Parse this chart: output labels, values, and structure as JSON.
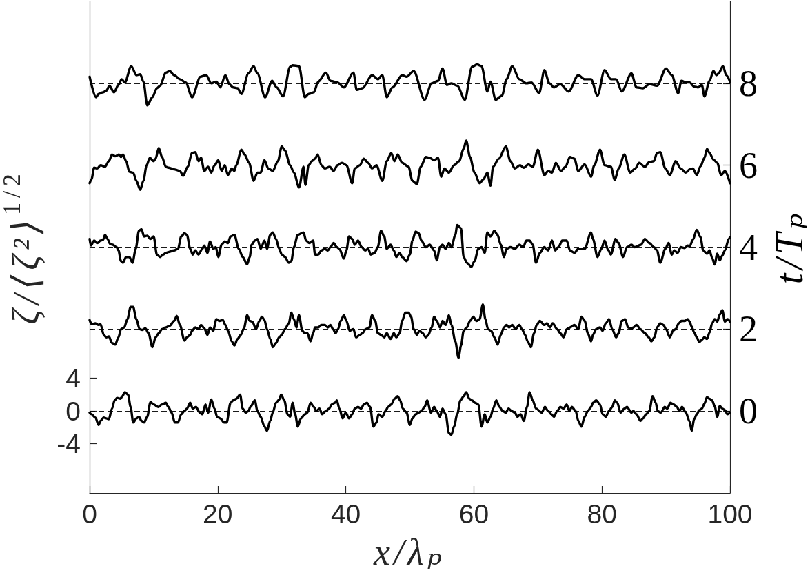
{
  "chart_data": {
    "type": "line",
    "xlabel": "x/λₚ",
    "ylabel": "ζ/⟨ζ²⟩$^{1/2}$",
    "y2label": "t/Tₚ",
    "xlim": [
      0,
      100
    ],
    "xticks": [
      0,
      20,
      40,
      60,
      80,
      100
    ],
    "ylim": [
      -10,
      50
    ],
    "yticks": [
      -4,
      0,
      4
    ],
    "y2lim": [
      -2,
      10
    ],
    "y2ticks": [
      0,
      2,
      4,
      6,
      8
    ],
    "ref_lines": [
      {
        "axis": "y2",
        "value": 0,
        "color": "#000000",
        "line_style": "dashed"
      },
      {
        "axis": "y2",
        "value": 2,
        "color": "#000000",
        "line_style": "dashed"
      },
      {
        "axis": "y2",
        "value": 4,
        "color": "#000000",
        "line_style": "dashed"
      },
      {
        "axis": "y2",
        "value": 6,
        "color": "#000000",
        "line_style": "dashed"
      },
      {
        "axis": "y2",
        "value": 8,
        "color": "#000000",
        "line_style": "dashed"
      }
    ],
    "series": [
      {
        "color": "#000000",
        "x": [
          0,
          0.3,
          0.9,
          1.4,
          1.7,
          2.2,
          2.6,
          3.0,
          3.5,
          3.9,
          4.3,
          4.8,
          5.1,
          5.5,
          6.0,
          6.4,
          6.8,
          7.3,
          7.7,
          8.1,
          8.5,
          9.0,
          9.5,
          10.0,
          10.7,
          11.3,
          11.9,
          12.3,
          12.8,
          13.3,
          13.8,
          14.3,
          14.8,
          15.2,
          15.7,
          16.1,
          16.6,
          17.2,
          17.6,
          18.1,
          18.5,
          19.0,
          19.5,
          19.9,
          20.4,
          21.0,
          21.4,
          22.0,
          22.4,
          22.9,
          23.5,
          23.9,
          24.4,
          24.8,
          25.1,
          25.8,
          26.2,
          26.7,
          27.3,
          27.7,
          28.2,
          28.6,
          29.1,
          29.6,
          29.9,
          30.4,
          30.9,
          31.3,
          31.7,
          32.1,
          32.5,
          33.0,
          33.6,
          34.0,
          34.5,
          35.0,
          35.4,
          35.9,
          36.3,
          36.9,
          37.4,
          37.8,
          38.3,
          38.6,
          39.0,
          39.5,
          40.0,
          40.5,
          41.0,
          41.4,
          41.9,
          42.4,
          42.8,
          43.3,
          43.8,
          44.3,
          44.8,
          45.1,
          45.7,
          46.2,
          46.6,
          47.1,
          47.6,
          48.1,
          48.5,
          48.9,
          49.5,
          50.0,
          50.4,
          50.9,
          51.4,
          51.8,
          52.3,
          52.7,
          53.3,
          53.8,
          54.2,
          54.7,
          55.1,
          55.6,
          56.1,
          56.5,
          56.9,
          57.4,
          57.9,
          58.4,
          58.8,
          59.3,
          59.7,
          60.2,
          60.7,
          61.2,
          61.7,
          62.1,
          62.6,
          63.0,
          63.5,
          64.0,
          64.5,
          65.0,
          65.4,
          65.9,
          66.4,
          66.8,
          67.3,
          67.8,
          68.3,
          68.7,
          69.2,
          69.7,
          70.6,
          71.1,
          71.6,
          72.1,
          72.5,
          73.0,
          73.5,
          74.0,
          74.5,
          74.9,
          75.3,
          75.9,
          76.3,
          76.8,
          77.3,
          77.8,
          78.3,
          78.6,
          79.1,
          79.7,
          80.1,
          80.6,
          81.1,
          81.6,
          82.0,
          82.4,
          82.9,
          83.5,
          83.9,
          84.6,
          84.9,
          85.4,
          86.0,
          86.4,
          86.9,
          87.4,
          87.9,
          88.4,
          88.7,
          89.2,
          89.8,
          90.2,
          90.7,
          91.2,
          91.7,
          92.1,
          92.5,
          93.1,
          93.7,
          94.0,
          94.4,
          94.8,
          95.2,
          95.6,
          96.0,
          96.4,
          96.8,
          97.2,
          97.6,
          98.0,
          98.4,
          98.8,
          99.2,
          99.6,
          100
        ],
        "values": [
          -0.2,
          -0.4,
          -0.8,
          -1.7,
          -1.2,
          -0.8,
          -0.9,
          -1.0,
          0.3,
          1.3,
          1.6,
          1.5,
          1.8,
          2.3,
          2.0,
          0.5,
          -1.4,
          -0.9,
          -0.7,
          -1.2,
          -1.4,
          -0.7,
          1.1,
          0.8,
          0.5,
          0.8,
          1.0,
          0.5,
          -0.2,
          -1.4,
          -1.4,
          -0.4,
          0.0,
          0.3,
          1.0,
          0.3,
          0.5,
          -0.2,
          -0.4,
          0.8,
          -0.2,
          1.4,
          0.3,
          -0.7,
          -0.9,
          -1.4,
          -1.4,
          1.0,
          1.3,
          1.5,
          2.0,
          0.3,
          -0.2,
          0.0,
          0.5,
          1.3,
          0.0,
          -0.7,
          -1.9,
          -2.4,
          -1.2,
          -0.2,
          1.0,
          1.4,
          2.0,
          1.3,
          -0.4,
          -0.7,
          1.0,
          -0.4,
          -1.9,
          -0.9,
          -0.4,
          -0.2,
          1.0,
          0.5,
          0.0,
          0.3,
          -0.4,
          0.0,
          0.3,
          0.8,
          1.0,
          1.3,
          0.3,
          -0.9,
          -0.2,
          -0.9,
          -0.4,
          0.3,
          0.5,
          0.3,
          0.8,
          1.0,
          0.5,
          -1.9,
          -1.4,
          -0.4,
          -0.7,
          0.0,
          0.5,
          0.8,
          1.5,
          1.8,
          1.3,
          0.3,
          -0.2,
          -1.7,
          -0.9,
          -0.4,
          -0.2,
          0.0,
          0.5,
          1.3,
          -0.2,
          0.5,
          0.0,
          -0.7,
          0.3,
          -0.4,
          -2.7,
          -2.9,
          -1.9,
          -0.4,
          1.3,
          1.8,
          2.3,
          1.5,
          1.3,
          1.0,
          0.8,
          -1.9,
          -0.4,
          -1.4,
          -0.7,
          0.3,
          1.3,
          0.5,
          0.0,
          -0.2,
          0.3,
          0.0,
          -0.2,
          -0.7,
          -0.4,
          -1.2,
          0.5,
          2.3,
          1.3,
          0.3,
          -0.2,
          0.5,
          0.0,
          -0.4,
          -0.7,
          0.0,
          0.5,
          0.3,
          0.8,
          0.0,
          0.5,
          0.0,
          -1.2,
          -1.9,
          -0.7,
          0.0,
          0.5,
          1.0,
          1.3,
          0.8,
          -0.4,
          -0.7,
          0.0,
          0.5,
          1.3,
          1.0,
          -0.2,
          0.3,
          0.5,
          -0.2,
          0.0,
          -0.4,
          -1.2,
          -0.9,
          -0.4,
          0.0,
          1.8,
          1.0,
          0.0,
          -0.2,
          0.5,
          0.3,
          1.0,
          0.8,
          0.5,
          0.0,
          0.5,
          -0.2,
          -1.3,
          -2.4,
          -1.0,
          -0.4,
          0.1,
          0.3,
          0.9,
          1.7,
          1.5,
          1.3,
          0.6,
          -0.7,
          0.6,
          0.3,
          0.1,
          -0.4,
          -0.2
        ]
      },
      {
        "color": "#000000",
        "x": [
          0,
          0.3,
          0.9,
          1.4,
          1.7,
          2.2,
          2.6,
          3.0,
          3.5,
          4.0,
          4.5,
          4.9,
          5.4,
          5.9,
          6.4,
          6.8,
          7.3,
          7.8,
          8.2,
          8.7,
          9.2,
          9.8,
          10.3,
          10.8,
          11.3,
          11.9,
          12.5,
          13.2,
          13.6,
          14.1,
          14.8,
          15.2,
          15.7,
          16.0,
          16.5,
          17.0,
          17.4,
          17.9,
          18.4,
          18.8,
          19.3,
          19.8,
          20.3,
          20.8,
          21.2,
          21.6,
          22.2,
          22.6,
          23.1,
          23.6,
          24.1,
          24.6,
          25.0,
          25.4,
          26.0,
          26.5,
          26.9,
          27.3,
          27.7,
          28.2,
          28.6,
          29.1,
          29.6,
          30.0,
          30.5,
          31.1,
          31.5,
          31.9,
          32.3,
          32.7,
          33.2,
          33.6,
          34.0,
          34.5,
          34.9,
          35.2,
          35.7,
          36.2,
          36.7,
          37.2,
          37.6,
          38.0,
          38.4,
          38.8,
          39.2,
          39.7,
          40.1,
          40.6,
          41.2,
          41.6,
          42.2,
          42.6,
          43.1,
          43.7,
          44.1,
          44.6,
          45.0,
          45.5,
          46.0,
          46.4,
          47.0,
          47.5,
          47.9,
          48.4,
          48.8,
          49.3,
          49.8,
          50.2,
          50.6,
          51.1,
          51.5,
          52.0,
          52.5,
          52.9,
          53.4,
          53.8,
          54.2,
          54.7,
          55.1,
          55.6,
          56.1,
          56.5,
          57.1,
          57.6,
          58.0,
          58.4,
          58.9,
          59.4,
          59.9,
          60.4,
          60.9,
          61.4,
          61.8,
          62.2,
          62.7,
          63.2,
          63.7,
          64.2,
          64.7,
          65.1,
          65.5,
          66.0,
          66.5,
          67.1,
          67.5,
          68.0,
          68.4,
          68.9,
          69.4,
          69.8,
          70.3,
          71.0,
          71.4,
          71.9,
          72.3,
          73.0,
          73.5,
          74.0,
          74.5,
          75.0,
          75.7,
          76.3,
          76.8,
          77.3,
          77.8,
          78.3,
          78.6,
          79.1,
          79.7,
          80.1,
          80.6,
          81.1,
          81.6,
          82.2,
          82.6,
          83.1,
          83.6,
          84.1,
          84.6,
          84.9,
          85.4,
          86.0,
          86.7,
          87.3,
          87.7,
          88.2,
          88.6,
          89.1,
          89.6,
          90.0,
          90.6,
          91.1,
          91.5,
          92.0,
          92.4,
          92.9,
          93.4,
          93.7,
          94.0,
          94.4,
          94.8,
          95.2,
          95.6,
          96.0,
          96.4,
          96.8,
          97.2,
          97.6,
          98.0,
          98.4,
          98.8,
          99.2,
          99.6,
          100
        ],
        "values": [
          11.1,
          10.6,
          10.7,
          10.5,
          10.6,
          9.3,
          9.0,
          9.1,
          8.3,
          8.1,
          9.0,
          10.0,
          10.2,
          11.2,
          12.7,
          12.7,
          11.2,
          10.0,
          9.9,
          10.1,
          9.5,
          7.8,
          9.0,
          9.5,
          10.0,
          10.2,
          10.4,
          11.0,
          11.6,
          10.5,
          8.6,
          9.0,
          9.3,
          9.8,
          10.2,
          10.0,
          10.5,
          10.1,
          9.3,
          10.2,
          9.8,
          11.2,
          11.0,
          11.1,
          10.5,
          9.8,
          8.5,
          8.0,
          8.8,
          9.3,
          10.1,
          11.7,
          11.0,
          10.9,
          10.0,
          11.0,
          11.5,
          11.1,
          10.0,
          8.8,
          7.8,
          8.3,
          9.0,
          9.3,
          10.0,
          10.7,
          12.0,
          11.2,
          10.2,
          11.7,
          9.8,
          9.5,
          9.5,
          8.5,
          9.5,
          10.2,
          10.2,
          10.5,
          10.5,
          10.2,
          10.5,
          10.0,
          9.5,
          10.0,
          11.0,
          11.7,
          11.0,
          9.8,
          10.0,
          9.0,
          9.3,
          9.5,
          10.0,
          10.2,
          11.7,
          11.0,
          9.5,
          9.3,
          9.0,
          9.5,
          8.8,
          9.5,
          9.0,
          9.5,
          11.0,
          12.0,
          12.0,
          11.5,
          10.0,
          9.3,
          9.8,
          9.5,
          9.0,
          9.3,
          10.2,
          11.5,
          11.0,
          10.2,
          11.0,
          10.5,
          11.7,
          10.5,
          8.5,
          6.5,
          8.0,
          9.8,
          10.2,
          11.0,
          11.5,
          11.0,
          11.2,
          13.0,
          11.2,
          10.0,
          9.8,
          9.0,
          8.1,
          9.3,
          10.2,
          10.5,
          10.2,
          10.5,
          10.0,
          10.5,
          10.0,
          9.3,
          8.5,
          7.8,
          9.5,
          10.5,
          11.0,
          10.5,
          10.7,
          10.2,
          10.7,
          10.0,
          9.5,
          9.0,
          10.0,
          10.2,
          10.5,
          10.0,
          11.5,
          11.0,
          9.5,
          8.5,
          9.3,
          10.0,
          10.2,
          9.8,
          10.7,
          11.2,
          10.0,
          9.0,
          9.5,
          11.0,
          11.2,
          10.2,
          10.0,
          10.2,
          10.5,
          10.0,
          9.5,
          9.0,
          8.5,
          9.0,
          10.2,
          10.7,
          10.5,
          10.0,
          9.0,
          9.8,
          10.0,
          10.7,
          11.0,
          11.0,
          11.2,
          10.9,
          10.3,
          9.6,
          9.0,
          8.4,
          8.7,
          9.0,
          8.8,
          9.6,
          10.7,
          11.2,
          10.9,
          11.8,
          12.3,
          10.9,
          11.2,
          10.9
        ]
      },
      {
        "color": "#000000",
        "x": [
          0,
          0.2,
          0.7,
          1.2,
          1.7,
          2.1,
          2.4,
          2.8,
          3.2,
          3.6,
          4.2,
          4.5,
          4.9,
          5.2,
          5.7,
          6.2,
          6.7,
          7.2,
          7.7,
          8.1,
          8.5,
          9.0,
          9.5,
          10.0,
          10.5,
          11.0,
          11.5,
          11.9,
          12.3,
          13.2,
          13.8,
          14.3,
          14.8,
          15.2,
          15.7,
          16.1,
          16.5,
          17.0,
          17.6,
          17.9,
          18.4,
          18.8,
          19.3,
          19.7,
          20.1,
          20.6,
          21.1,
          21.6,
          22.0,
          22.6,
          23.3,
          23.9,
          24.6,
          25.0,
          25.3,
          25.8,
          26.2,
          26.7,
          27.3,
          27.7,
          28.2,
          28.6,
          29.1,
          29.6,
          30.0,
          30.5,
          31.1,
          31.5,
          31.9,
          32.5,
          33.4,
          33.8,
          34.3,
          34.9,
          35.2,
          35.7,
          36.2,
          36.7,
          37.2,
          37.6,
          38.1,
          38.6,
          39.0,
          39.7,
          40.1,
          40.5,
          41.0,
          41.4,
          41.9,
          42.5,
          43.0,
          43.5,
          43.9,
          44.5,
          45.0,
          45.5,
          46.0,
          46.4,
          47.0,
          47.5,
          47.9,
          48.4,
          48.8,
          49.5,
          50.0,
          50.4,
          50.9,
          51.4,
          51.8,
          52.5,
          53.1,
          53.8,
          54.2,
          54.7,
          55.1,
          55.6,
          56.1,
          56.5,
          57.1,
          57.4,
          58.0,
          58.4,
          58.9,
          59.6,
          60.1,
          60.7,
          61.2,
          61.7,
          62.1,
          62.6,
          63.2,
          63.7,
          64.2,
          64.7,
          65.1,
          65.7,
          66.4,
          67.1,
          67.7,
          68.2,
          68.7,
          69.2,
          69.7,
          70.3,
          71.0,
          71.6,
          72.2,
          72.7,
          73.2,
          73.8,
          74.5,
          75.0,
          75.7,
          76.3,
          77.3,
          78.3,
          78.6,
          79.3,
          79.9,
          80.4,
          81.0,
          81.4,
          82.1,
          82.6,
          83.3,
          83.9,
          84.6,
          85.1,
          86.1,
          86.7,
          87.4,
          88.1,
          88.6,
          89.1,
          89.9,
          90.4,
          90.9,
          91.3,
          91.8,
          92.3,
          92.9,
          93.4,
          93.7,
          94.2,
          94.8,
          95.4,
          95.8,
          96.4,
          96.8,
          97.2,
          97.6,
          98.0,
          98.4,
          98.8,
          99.2,
          99.8,
          100
        ],
        "values": [
          21.0,
          20.2,
          20.8,
          20.5,
          20.8,
          20.9,
          21.5,
          21.0,
          20.4,
          20.3,
          20.0,
          19.6,
          18.3,
          18.1,
          18.8,
          18.8,
          18.1,
          19.8,
          22.0,
          22.2,
          21.3,
          21.4,
          21.0,
          21.3,
          19.1,
          18.8,
          19.1,
          19.3,
          19.4,
          19.6,
          19.8,
          21.3,
          21.7,
          21.5,
          19.8,
          19.1,
          19.6,
          19.1,
          19.8,
          20.2,
          19.3,
          20.7,
          19.8,
          20.0,
          18.8,
          20.3,
          20.7,
          20.5,
          21.3,
          21.5,
          19.8,
          18.8,
          17.9,
          18.8,
          20.3,
          20.8,
          21.0,
          19.8,
          20.8,
          19.8,
          21.5,
          21.8,
          21.0,
          19.8,
          19.1,
          18.8,
          18.1,
          18.3,
          20.0,
          21.5,
          21.8,
          20.8,
          20.5,
          20.8,
          19.1,
          19.1,
          19.6,
          19.8,
          19.6,
          20.0,
          20.5,
          20.0,
          19.8,
          18.6,
          19.6,
          21.3,
          21.0,
          20.3,
          20.8,
          20.0,
          19.6,
          19.8,
          19.1,
          19.3,
          20.0,
          22.0,
          21.3,
          19.8,
          20.3,
          19.6,
          18.8,
          19.3,
          18.8,
          18.3,
          19.1,
          20.8,
          21.9,
          21.7,
          20.8,
          20.0,
          20.3,
          19.6,
          18.4,
          20.0,
          20.3,
          19.8,
          20.5,
          20.0,
          21.5,
          22.7,
          22.3,
          18.8,
          18.1,
          17.6,
          18.3,
          19.8,
          20.0,
          19.3,
          21.8,
          21.3,
          22.0,
          21.5,
          20.3,
          18.8,
          19.8,
          20.0,
          19.8,
          20.3,
          20.0,
          20.8,
          20.8,
          20.3,
          18.1,
          19.3,
          20.0,
          19.6,
          20.8,
          19.6,
          20.0,
          20.8,
          20.8,
          19.6,
          19.3,
          19.8,
          19.8,
          21.8,
          21.0,
          18.8,
          19.8,
          20.8,
          19.6,
          19.1,
          21.0,
          20.5,
          18.8,
          20.0,
          20.3,
          20.0,
          20.3,
          21.0,
          20.5,
          20.0,
          19.6,
          18.1,
          19.8,
          20.5,
          19.1,
          19.6,
          19.3,
          20.0,
          19.9,
          20.2,
          20.1,
          20.9,
          22.1,
          21.2,
          19.6,
          19.2,
          19.6,
          18.7,
          17.9,
          19.2,
          18.4,
          19.0,
          19.6,
          21.0,
          21.2
        ]
      },
      {
        "color": "#000000",
        "x": [
          0,
          0.3,
          0.7,
          1.2,
          1.7,
          2.4,
          3.0,
          3.5,
          4.0,
          4.6,
          4.9,
          5.2,
          5.7,
          6.2,
          6.8,
          7.3,
          7.9,
          8.4,
          8.9,
          9.4,
          10.0,
          10.3,
          10.8,
          11.3,
          11.9,
          12.3,
          13.2,
          14.1,
          14.6,
          15.3,
          16.0,
          16.5,
          17.0,
          17.4,
          17.9,
          18.5,
          19.0,
          19.5,
          20.1,
          20.6,
          21.1,
          21.6,
          22.2,
          22.6,
          22.9,
          23.7,
          24.2,
          24.9,
          25.6,
          26.2,
          26.7,
          27.3,
          27.9,
          28.6,
          29.4,
          30.0,
          30.5,
          31.3,
          31.9,
          32.7,
          33.4,
          33.7,
          34.2,
          34.7,
          35.2,
          35.6,
          36.2,
          36.7,
          37.5,
          38.1,
          38.7,
          39.4,
          40.1,
          41.0,
          41.4,
          42.2,
          42.8,
          43.5,
          44.1,
          44.8,
          45.7,
          46.4,
          47.1,
          47.6,
          48.1,
          48.8,
          49.8,
          50.4,
          51.1,
          51.7,
          52.5,
          53.1,
          53.8,
          54.4,
          54.9,
          55.4,
          56.1,
          56.9,
          57.7,
          58.4,
          58.8,
          59.4,
          60.1,
          60.9,
          61.5,
          62.1,
          62.6,
          63.0,
          63.9,
          65.0,
          65.7,
          66.4,
          67.2,
          67.8,
          68.5,
          69.2,
          70.0,
          71.0,
          71.6,
          72.2,
          72.8,
          73.6,
          74.3,
          75.0,
          75.7,
          76.3,
          77.3,
          78.3,
          78.8,
          79.7,
          80.4,
          81.4,
          82.0,
          82.6,
          83.5,
          84.4,
          85.2,
          85.8,
          86.7,
          87.4,
          88.1,
          88.6,
          89.1,
          89.9,
          90.6,
          91.5,
          92.3,
          93.1,
          93.7,
          94.2,
          94.8,
          95.4,
          96.0,
          96.4,
          96.8,
          97.4,
          98.0,
          98.6,
          99.2,
          100
        ],
        "values": [
          27.8,
          28.3,
          29.7,
          29.6,
          30.0,
          29.8,
          30.5,
          31.3,
          31.1,
          31.3,
          31.0,
          31.3,
          30.5,
          29.2,
          29.1,
          28.1,
          27.0,
          28.1,
          30.0,
          30.9,
          30.5,
          30.8,
          32.1,
          31.0,
          29.8,
          29.7,
          29.5,
          29.3,
          28.7,
          29.8,
          31.5,
          31.6,
          30.5,
          30.9,
          29.3,
          29.8,
          29.1,
          30.0,
          30.6,
          29.3,
          30.0,
          28.8,
          29.6,
          29.3,
          30.0,
          31.9,
          31.3,
          30.3,
          28.1,
          29.1,
          29.1,
          30.6,
          29.6,
          29.3,
          30.5,
          32.3,
          31.8,
          30.0,
          29.1,
          27.3,
          29.8,
          27.6,
          30.0,
          30.5,
          30.8,
          31.3,
          30.0,
          29.6,
          29.8,
          29.3,
          30.0,
          30.3,
          30.0,
          27.8,
          29.6,
          30.0,
          30.8,
          30.3,
          29.6,
          30.0,
          28.1,
          30.5,
          31.5,
          30.5,
          31.3,
          30.3,
          29.8,
          28.1,
          27.7,
          29.8,
          31.0,
          30.9,
          30.6,
          30.9,
          28.6,
          29.6,
          29.1,
          30.0,
          30.5,
          32.0,
          33.0,
          31.0,
          29.1,
          27.8,
          28.3,
          29.1,
          27.5,
          29.8,
          30.8,
          32.3,
          30.5,
          29.6,
          30.0,
          29.7,
          30.1,
          29.8,
          31.9,
          28.8,
          29.3,
          29.1,
          30.3,
          29.3,
          29.8,
          31.0,
          30.8,
          29.3,
          30.1,
          28.6,
          30.0,
          31.9,
          30.0,
          29.8,
          28.2,
          29.6,
          31.3,
          29.1,
          29.6,
          30.3,
          29.8,
          30.4,
          30.5,
          31.5,
          31.6,
          29.6,
          28.8,
          30.5,
          29.6,
          29.1,
          29.5,
          29.6,
          28.8,
          29.9,
          30.9,
          32.0,
          31.5,
          30.7,
          30.3,
          28.8,
          29.3,
          27.8
        ]
      },
      {
        "color": "#000000",
        "x": [
          0,
          1.0,
          1.4,
          2.1,
          2.6,
          3.1,
          3.8,
          4.5,
          5.0,
          5.5,
          6.5,
          7.3,
          7.9,
          8.4,
          9.0,
          9.8,
          10.5,
          11.0,
          11.9,
          12.5,
          13.2,
          14.1,
          15.0,
          16.0,
          17.3,
          18.2,
          19.0,
          19.8,
          20.4,
          21.2,
          21.8,
          22.4,
          23.1,
          23.7,
          24.8,
          25.6,
          26.2,
          27.4,
          28.5,
          29.2,
          30.2,
          31.3,
          31.7,
          32.7,
          33.6,
          34.2,
          35.0,
          35.7,
          36.9,
          37.6,
          38.7,
          39.7,
          41.2,
          41.7,
          42.6,
          44.1,
          45.0,
          45.7,
          46.4,
          47.3,
          48.8,
          49.5,
          50.6,
          52.3,
          53.4,
          54.4,
          55.1,
          55.8,
          56.5,
          57.4,
          58.6,
          59.7,
          60.5,
          61.2,
          62.1,
          62.6,
          63.4,
          64.4,
          65.1,
          66.0,
          67.1,
          68.2,
          69.0,
          70.2,
          71.0,
          71.8,
          72.5,
          73.5,
          74.8,
          76.3,
          77.3,
          78.3,
          79.3,
          80.4,
          81.4,
          82.2,
          83.1,
          84.6,
          85.4,
          86.4,
          87.4,
          88.6,
          90.0,
          90.9,
          91.9,
          92.4,
          93.2,
          93.7,
          94.4,
          95.0,
          95.6,
          96.0,
          96.8,
          97.4,
          97.9,
          98.2,
          98.9,
          99.4,
          100
        ],
        "values": [
          40.8,
          38.3,
          38.7,
          38.9,
          39.1,
          39.7,
          38.9,
          39.8,
          40.5,
          40.1,
          42.1,
          41.0,
          41.1,
          40.2,
          37.3,
          38.3,
          39.4,
          39.7,
          41.3,
          41.5,
          41.0,
          40.5,
          40.1,
          38.3,
          40.8,
          41.0,
          40.0,
          40.2,
          39.5,
          41.0,
          39.9,
          39.5,
          39.4,
          38.7,
          41.2,
          42.1,
          41.2,
          38.3,
          40.3,
          39.5,
          38.4,
          42.0,
          42.2,
          42.1,
          38.3,
          38.7,
          38.9,
          40.2,
          41.3,
          40.3,
          40.1,
          39.5,
          41.3,
          39.2,
          39.4,
          41.0,
          40.5,
          41.0,
          38.3,
          39.5,
          41.0,
          40.8,
          41.5,
          38.0,
          40.0,
          40.3,
          41.8,
          39.8,
          40.0,
          39.7,
          38.0,
          42.0,
          42.3,
          42.1,
          39.0,
          40.2,
          38.0,
          38.5,
          40.5,
          42.1,
          40.5,
          40.0,
          40.1,
          38.8,
          41.6,
          40.0,
          39.5,
          39.9,
          39.0,
          41.0,
          40.5,
          40.5,
          38.5,
          41.6,
          40.5,
          40.5,
          39.0,
          41.2,
          39.5,
          39.4,
          39.9,
          39.7,
          41.8,
          41.0,
          38.8,
          40.3,
          40.1,
          40.1,
          39.6,
          39.5,
          39.8,
          38.4,
          40.3,
          41.5,
          41.0,
          41.2,
          42.1,
          41.0,
          40.2
        ]
      }
    ]
  }
}
